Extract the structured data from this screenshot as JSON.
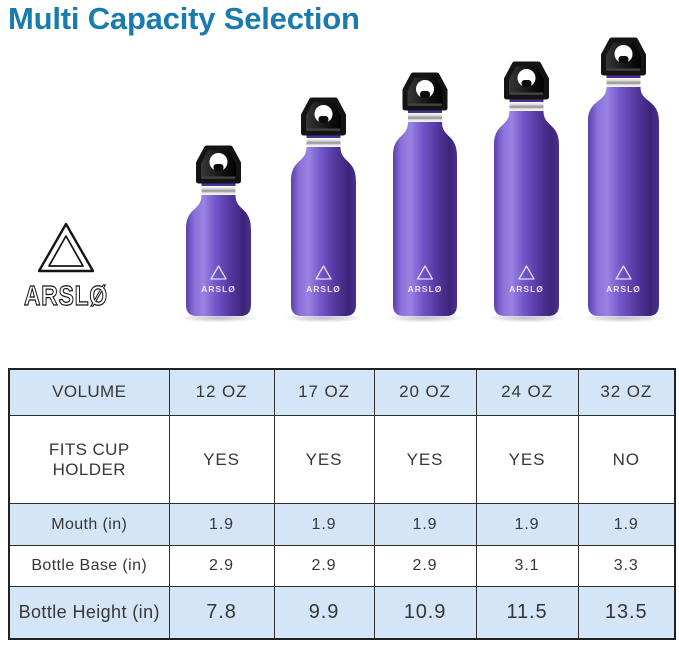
{
  "title": "Multi Capacity Selection",
  "brand": {
    "logo_text": "ARSLØ"
  },
  "bottles": [
    {
      "capacity": "12 OZ"
    },
    {
      "capacity": "17 OZ"
    },
    {
      "capacity": "20 OZ"
    },
    {
      "capacity": "24 OZ"
    },
    {
      "capacity": "32 OZ"
    }
  ],
  "colors": {
    "title_teal": "#197CAC",
    "bottle_purple_mid": "#7458cb",
    "bottle_purple_highlight": "#9a83e2",
    "bottle_purple_dark": "#3c2578",
    "collar_purple": "#4c2f96",
    "cap_black": "#141414",
    "silver": "#c9c9c9",
    "table_row_blue": "#d4e5f8",
    "table_border": "#2e2e2e",
    "table_text": "#373737"
  },
  "table": {
    "rows": [
      {
        "label": "VOLUME",
        "values": [
          "12 OZ",
          "17 OZ",
          "20 OZ",
          "24 OZ",
          "32 OZ"
        ]
      },
      {
        "label": "FITS CUP HOLDER",
        "values": [
          "YES",
          "YES",
          "YES",
          "YES",
          "NO"
        ]
      },
      {
        "label": "Mouth (in)",
        "values": [
          "1.9",
          "1.9",
          "1.9",
          "1.9",
          "1.9"
        ]
      },
      {
        "label": "Bottle Base (in)",
        "values": [
          "2.9",
          "2.9",
          "2.9",
          "3.1",
          "3.3"
        ]
      },
      {
        "label": "Bottle Height (in)",
        "values": [
          "7.8",
          "9.9",
          "10.9",
          "11.5",
          "13.5"
        ]
      }
    ]
  },
  "chart_data": {
    "type": "table",
    "title": "Multi Capacity Selection",
    "columns": [
      "VOLUME",
      "12 OZ",
      "17 OZ",
      "20 OZ",
      "24 OZ",
      "32 OZ"
    ],
    "rows": [
      [
        "FITS CUP HOLDER",
        "YES",
        "YES",
        "YES",
        "YES",
        "NO"
      ],
      [
        "Mouth (in)",
        "1.9",
        "1.9",
        "1.9",
        "1.9",
        "1.9"
      ],
      [
        "Bottle Base (in)",
        "2.9",
        "2.9",
        "2.9",
        "3.1",
        "3.3"
      ],
      [
        "Bottle Height (in)",
        "7.8",
        "9.9",
        "10.9",
        "11.5",
        "13.5"
      ]
    ]
  }
}
